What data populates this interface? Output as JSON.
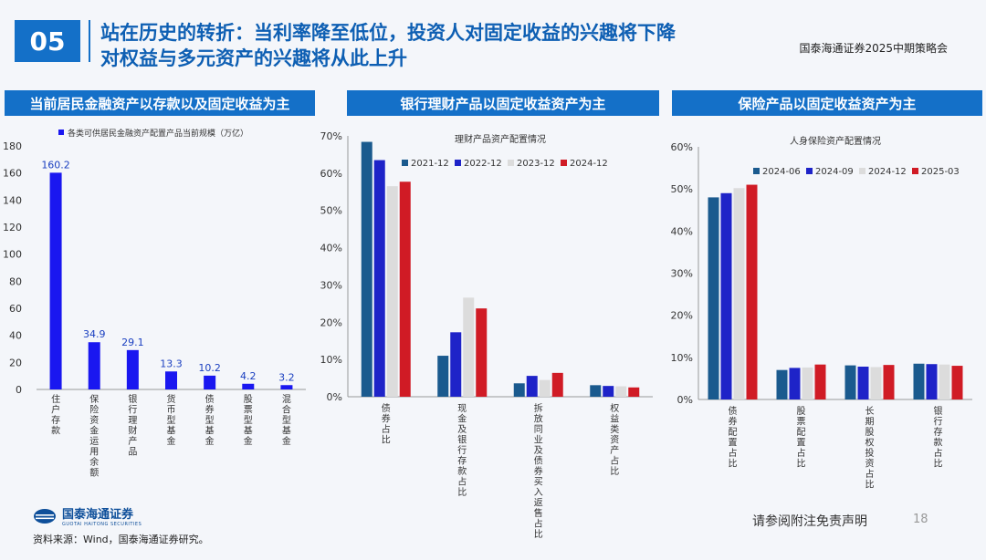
{
  "header": {
    "number": "05",
    "title_line1": "站在历史的转折：当利率降至低位，投资人对固定收益的兴趣将下降",
    "title_line2": "对权益与多元资产的兴趣将从此上升",
    "brand": "国泰海通证券2025中期策略会"
  },
  "footer": {
    "logo_cn": "国泰海通证券",
    "logo_en": "GUOTAI HAITONG SECURITIES",
    "source": "资料来源：Wind，国泰海通证券研究。",
    "disclaimer": "请参阅附注免责声明",
    "page": "18"
  },
  "panels": [
    {
      "heading": "当前居民金融资产以存款以及固定收益为主"
    },
    {
      "heading": "银行理财产品以固定收益资产为主"
    },
    {
      "heading": "保险产品以固定收益资产为主"
    }
  ],
  "colors": {
    "accent": "#1470c8",
    "bar_blue": "#1a17f0",
    "dark_teal": "#1a5a8e",
    "blue": "#1e23c8",
    "light_gray": "#dcdcdc",
    "red": "#d01b25"
  },
  "chart_data": [
    {
      "type": "bar",
      "title": "",
      "legend": "各类可供居民金融资产配置产品当前规模（万亿）",
      "categories": [
        "住户存款",
        "保险资金运用余额",
        "银行理财产品",
        "货币型基金",
        "债券型基金",
        "股票型基金",
        "混合型基金"
      ],
      "values": [
        160.2,
        34.9,
        29.1,
        13.3,
        10.2,
        4.2,
        3.2
      ],
      "value_labels": [
        "160.2",
        "34.9",
        "29.1",
        "13.3",
        "10.2",
        "4.2",
        "3.2"
      ],
      "ylim": [
        0,
        180
      ],
      "yticks": [
        "0",
        "20",
        "40",
        "60",
        "80",
        "100",
        "120",
        "140",
        "160",
        "180"
      ]
    },
    {
      "type": "bar",
      "title": "理财产品资产配置情况",
      "categories": [
        "债券占比",
        "现金及银行存款占比",
        "拆放同业及债券买入返售占比",
        "权益类资产占比"
      ],
      "series": [
        {
          "name": "2021-12",
          "values": [
            68.4,
            11.0,
            3.6,
            3.1
          ]
        },
        {
          "name": "2022-12",
          "values": [
            63.5,
            17.3,
            5.6,
            2.9
          ]
        },
        {
          "name": "2023-12",
          "values": [
            56.5,
            26.6,
            4.5,
            2.8
          ]
        },
        {
          "name": "2024-12",
          "values": [
            57.7,
            23.7,
            6.4,
            2.5
          ]
        }
      ],
      "ylim": [
        0,
        70
      ],
      "yticks": [
        "0%",
        "10%",
        "20%",
        "30%",
        "40%",
        "50%",
        "60%",
        "70%"
      ]
    },
    {
      "type": "bar",
      "title": "人身保险资产配置情况",
      "categories": [
        "债券配置占比",
        "股票配置占比",
        "长期股权投资占比",
        "银行存款占比"
      ],
      "series": [
        {
          "name": "2024-06",
          "values": [
            48.0,
            7.0,
            8.1,
            8.5
          ]
        },
        {
          "name": "2024-09",
          "values": [
            49.0,
            7.5,
            7.8,
            8.4
          ]
        },
        {
          "name": "2024-12",
          "values": [
            50.2,
            7.6,
            7.7,
            8.3
          ]
        },
        {
          "name": "2025-03",
          "values": [
            51.0,
            8.3,
            8.2,
            8.0
          ]
        }
      ],
      "ylim": [
        0,
        60
      ],
      "yticks": [
        "0%",
        "10%",
        "20%",
        "30%",
        "40%",
        "50%",
        "60%"
      ]
    }
  ]
}
